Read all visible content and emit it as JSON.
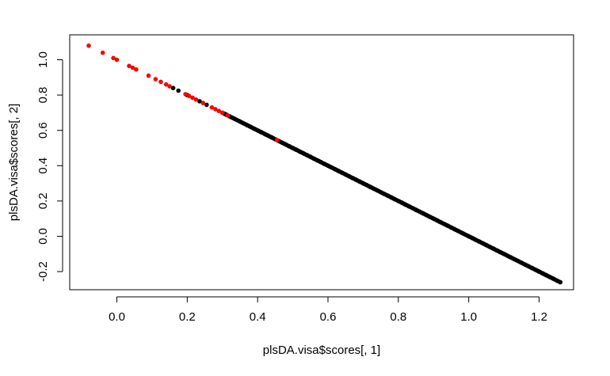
{
  "chart_data": {
    "type": "scatter",
    "title": "",
    "xlabel": "plsDA.visa$scores[, 1]",
    "ylabel": "plsDA.visa$scores[, 2]",
    "xlim": [
      -0.13,
      1.3
    ],
    "ylim": [
      -0.3,
      1.12
    ],
    "x_ticks": [
      "0.0",
      "0.2",
      "0.4",
      "0.6",
      "0.8",
      "1.0",
      "1.2"
    ],
    "y_ticks": [
      "-0.2",
      "0.0",
      "0.2",
      "0.4",
      "0.6",
      "0.8",
      "1.0"
    ],
    "grid": false,
    "legend": "none",
    "line": {
      "x_start": -0.09,
      "x_end": 1.26,
      "slope": -1,
      "intercept": 1.0
    },
    "series": [
      {
        "color": "#000000",
        "x": [
          0.16,
          0.175,
          0.2,
          0.235,
          0.255,
          0.3,
          0.31,
          0.32,
          0.335,
          0.35,
          0.36,
          0.37,
          0.38,
          0.39,
          0.4,
          0.41,
          0.42,
          0.43,
          0.44,
          0.47,
          0.48,
          0.49,
          0.5,
          0.51,
          0.52,
          0.53,
          0.54,
          0.55,
          0.56,
          0.57,
          0.58,
          0.59,
          0.6,
          0.61,
          0.62,
          0.63,
          0.64,
          0.65,
          0.66,
          0.67,
          0.68,
          0.69,
          0.7,
          0.71,
          0.72,
          0.73,
          0.74,
          0.75,
          0.76,
          0.77,
          0.78,
          0.79,
          0.8,
          0.81,
          0.82,
          0.83,
          0.84,
          0.85,
          0.86,
          0.87,
          0.88,
          0.89,
          0.9,
          0.91,
          0.92,
          0.93,
          0.94,
          0.95,
          0.96,
          0.97,
          0.98,
          1.0,
          1.01,
          1.02,
          1.03,
          1.04,
          1.05,
          1.06,
          1.07,
          1.08,
          1.09,
          1.1,
          1.11,
          1.12,
          1.13,
          1.14,
          1.15,
          1.16,
          1.17,
          1.18,
          1.19,
          1.2,
          1.21,
          1.22,
          1.23,
          1.24,
          1.25,
          1.26
        ],
        "y": [
          0.84,
          0.825,
          0.8,
          0.765,
          0.745,
          0.7,
          0.69,
          0.68,
          0.665,
          0.65,
          0.64,
          0.63,
          0.62,
          0.61,
          0.6,
          0.59,
          0.58,
          0.57,
          0.56,
          0.53,
          0.52,
          0.51,
          0.5,
          0.49,
          0.48,
          0.47,
          0.46,
          0.45,
          0.44,
          0.43,
          0.42,
          0.41,
          0.4,
          0.39,
          0.38,
          0.37,
          0.36,
          0.35,
          0.34,
          0.33,
          0.32,
          0.31,
          0.3,
          0.29,
          0.28,
          0.27,
          0.26,
          0.25,
          0.24,
          0.23,
          0.22,
          0.21,
          0.2,
          0.19,
          0.18,
          0.17,
          0.16,
          0.15,
          0.14,
          0.13,
          0.12,
          0.11,
          0.1,
          0.09,
          0.08,
          0.07,
          0.06,
          0.05,
          0.04,
          0.03,
          0.02,
          0.0,
          -0.01,
          -0.02,
          -0.03,
          -0.04,
          -0.05,
          -0.06,
          -0.07,
          -0.08,
          -0.09,
          -0.1,
          -0.11,
          -0.12,
          -0.13,
          -0.14,
          -0.15,
          -0.16,
          -0.17,
          -0.18,
          -0.19,
          -0.2,
          -0.21,
          -0.22,
          -0.23,
          -0.24,
          -0.25,
          -0.26
        ]
      },
      {
        "color": "#ff0000",
        "x": [
          -0.08,
          -0.04,
          -0.01,
          0.0,
          0.035,
          0.045,
          0.055,
          0.09,
          0.11,
          0.125,
          0.14,
          0.15,
          0.195,
          0.205,
          0.215,
          0.225,
          0.245,
          0.27,
          0.28,
          0.29,
          0.3,
          0.315,
          0.455
        ],
        "y": [
          1.08,
          1.04,
          1.01,
          1.0,
          0.965,
          0.955,
          0.945,
          0.91,
          0.89,
          0.875,
          0.86,
          0.85,
          0.805,
          0.795,
          0.785,
          0.775,
          0.755,
          0.73,
          0.72,
          0.71,
          0.7,
          0.685,
          0.545
        ]
      }
    ]
  }
}
